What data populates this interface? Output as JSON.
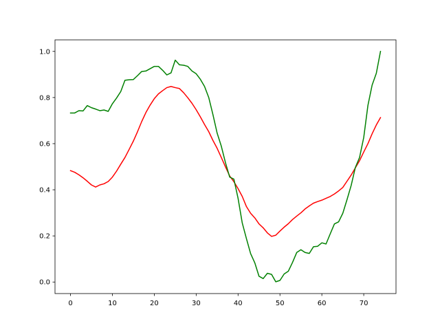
{
  "chart_data": {
    "type": "line",
    "title": "",
    "xlabel": "",
    "ylabel": "",
    "xlim": [
      -3.7,
      77.7
    ],
    "ylim": [
      -0.05,
      1.05
    ],
    "xticks": [
      0,
      10,
      20,
      30,
      40,
      50,
      60,
      70
    ],
    "yticks": [
      0.0,
      0.2,
      0.4,
      0.6,
      0.8,
      1.0
    ],
    "xtick_labels": [
      "0",
      "10",
      "20",
      "30",
      "40",
      "50",
      "60",
      "70"
    ],
    "ytick_labels": [
      "0.0",
      "0.2",
      "0.4",
      "0.6",
      "0.8",
      "1.0"
    ],
    "grid": false,
    "legend": "none",
    "x": [
      0,
      1,
      2,
      3,
      4,
      5,
      6,
      7,
      8,
      9,
      10,
      11,
      12,
      13,
      14,
      15,
      16,
      17,
      18,
      19,
      20,
      21,
      22,
      23,
      24,
      25,
      26,
      27,
      28,
      29,
      30,
      31,
      32,
      33,
      34,
      35,
      36,
      37,
      38,
      39,
      40,
      41,
      42,
      43,
      44,
      45,
      46,
      47,
      48,
      49,
      50,
      51,
      52,
      53,
      54,
      55,
      56,
      57,
      58,
      59,
      60,
      61,
      62,
      63,
      64,
      65,
      66,
      67,
      68,
      69,
      70,
      71,
      72,
      73,
      74
    ],
    "series": [
      {
        "color": "#ff0000",
        "values": [
          0.483,
          0.476,
          0.465,
          0.452,
          0.437,
          0.421,
          0.412,
          0.421,
          0.426,
          0.436,
          0.455,
          0.481,
          0.511,
          0.54,
          0.575,
          0.611,
          0.652,
          0.696,
          0.735,
          0.767,
          0.795,
          0.816,
          0.83,
          0.843,
          0.848,
          0.843,
          0.839,
          0.821,
          0.799,
          0.775,
          0.747,
          0.716,
          0.683,
          0.652,
          0.614,
          0.58,
          0.54,
          0.499,
          0.46,
          0.435,
          0.405,
          0.371,
          0.327,
          0.298,
          0.278,
          0.252,
          0.235,
          0.213,
          0.198,
          0.203,
          0.221,
          0.238,
          0.253,
          0.271,
          0.286,
          0.3,
          0.317,
          0.33,
          0.342,
          0.349,
          0.355,
          0.363,
          0.371,
          0.382,
          0.395,
          0.41,
          0.437,
          0.464,
          0.495,
          0.526,
          0.564,
          0.6,
          0.643,
          0.681,
          0.713
        ]
      },
      {
        "color": "#008000",
        "values": [
          0.733,
          0.733,
          0.743,
          0.742,
          0.765,
          0.756,
          0.75,
          0.743,
          0.746,
          0.74,
          0.773,
          0.798,
          0.826,
          0.875,
          0.877,
          0.878,
          0.895,
          0.913,
          0.915,
          0.925,
          0.935,
          0.935,
          0.918,
          0.898,
          0.907,
          0.962,
          0.942,
          0.94,
          0.935,
          0.915,
          0.903,
          0.879,
          0.848,
          0.8,
          0.726,
          0.646,
          0.589,
          0.517,
          0.455,
          0.446,
          0.363,
          0.256,
          0.188,
          0.123,
          0.083,
          0.025,
          0.015,
          0.038,
          0.033,
          0.001,
          0.007,
          0.035,
          0.047,
          0.085,
          0.128,
          0.14,
          0.128,
          0.124,
          0.153,
          0.155,
          0.17,
          0.165,
          0.209,
          0.252,
          0.261,
          0.298,
          0.357,
          0.419,
          0.497,
          0.54,
          0.627,
          0.766,
          0.854,
          0.905,
          1.0
        ]
      }
    ]
  }
}
